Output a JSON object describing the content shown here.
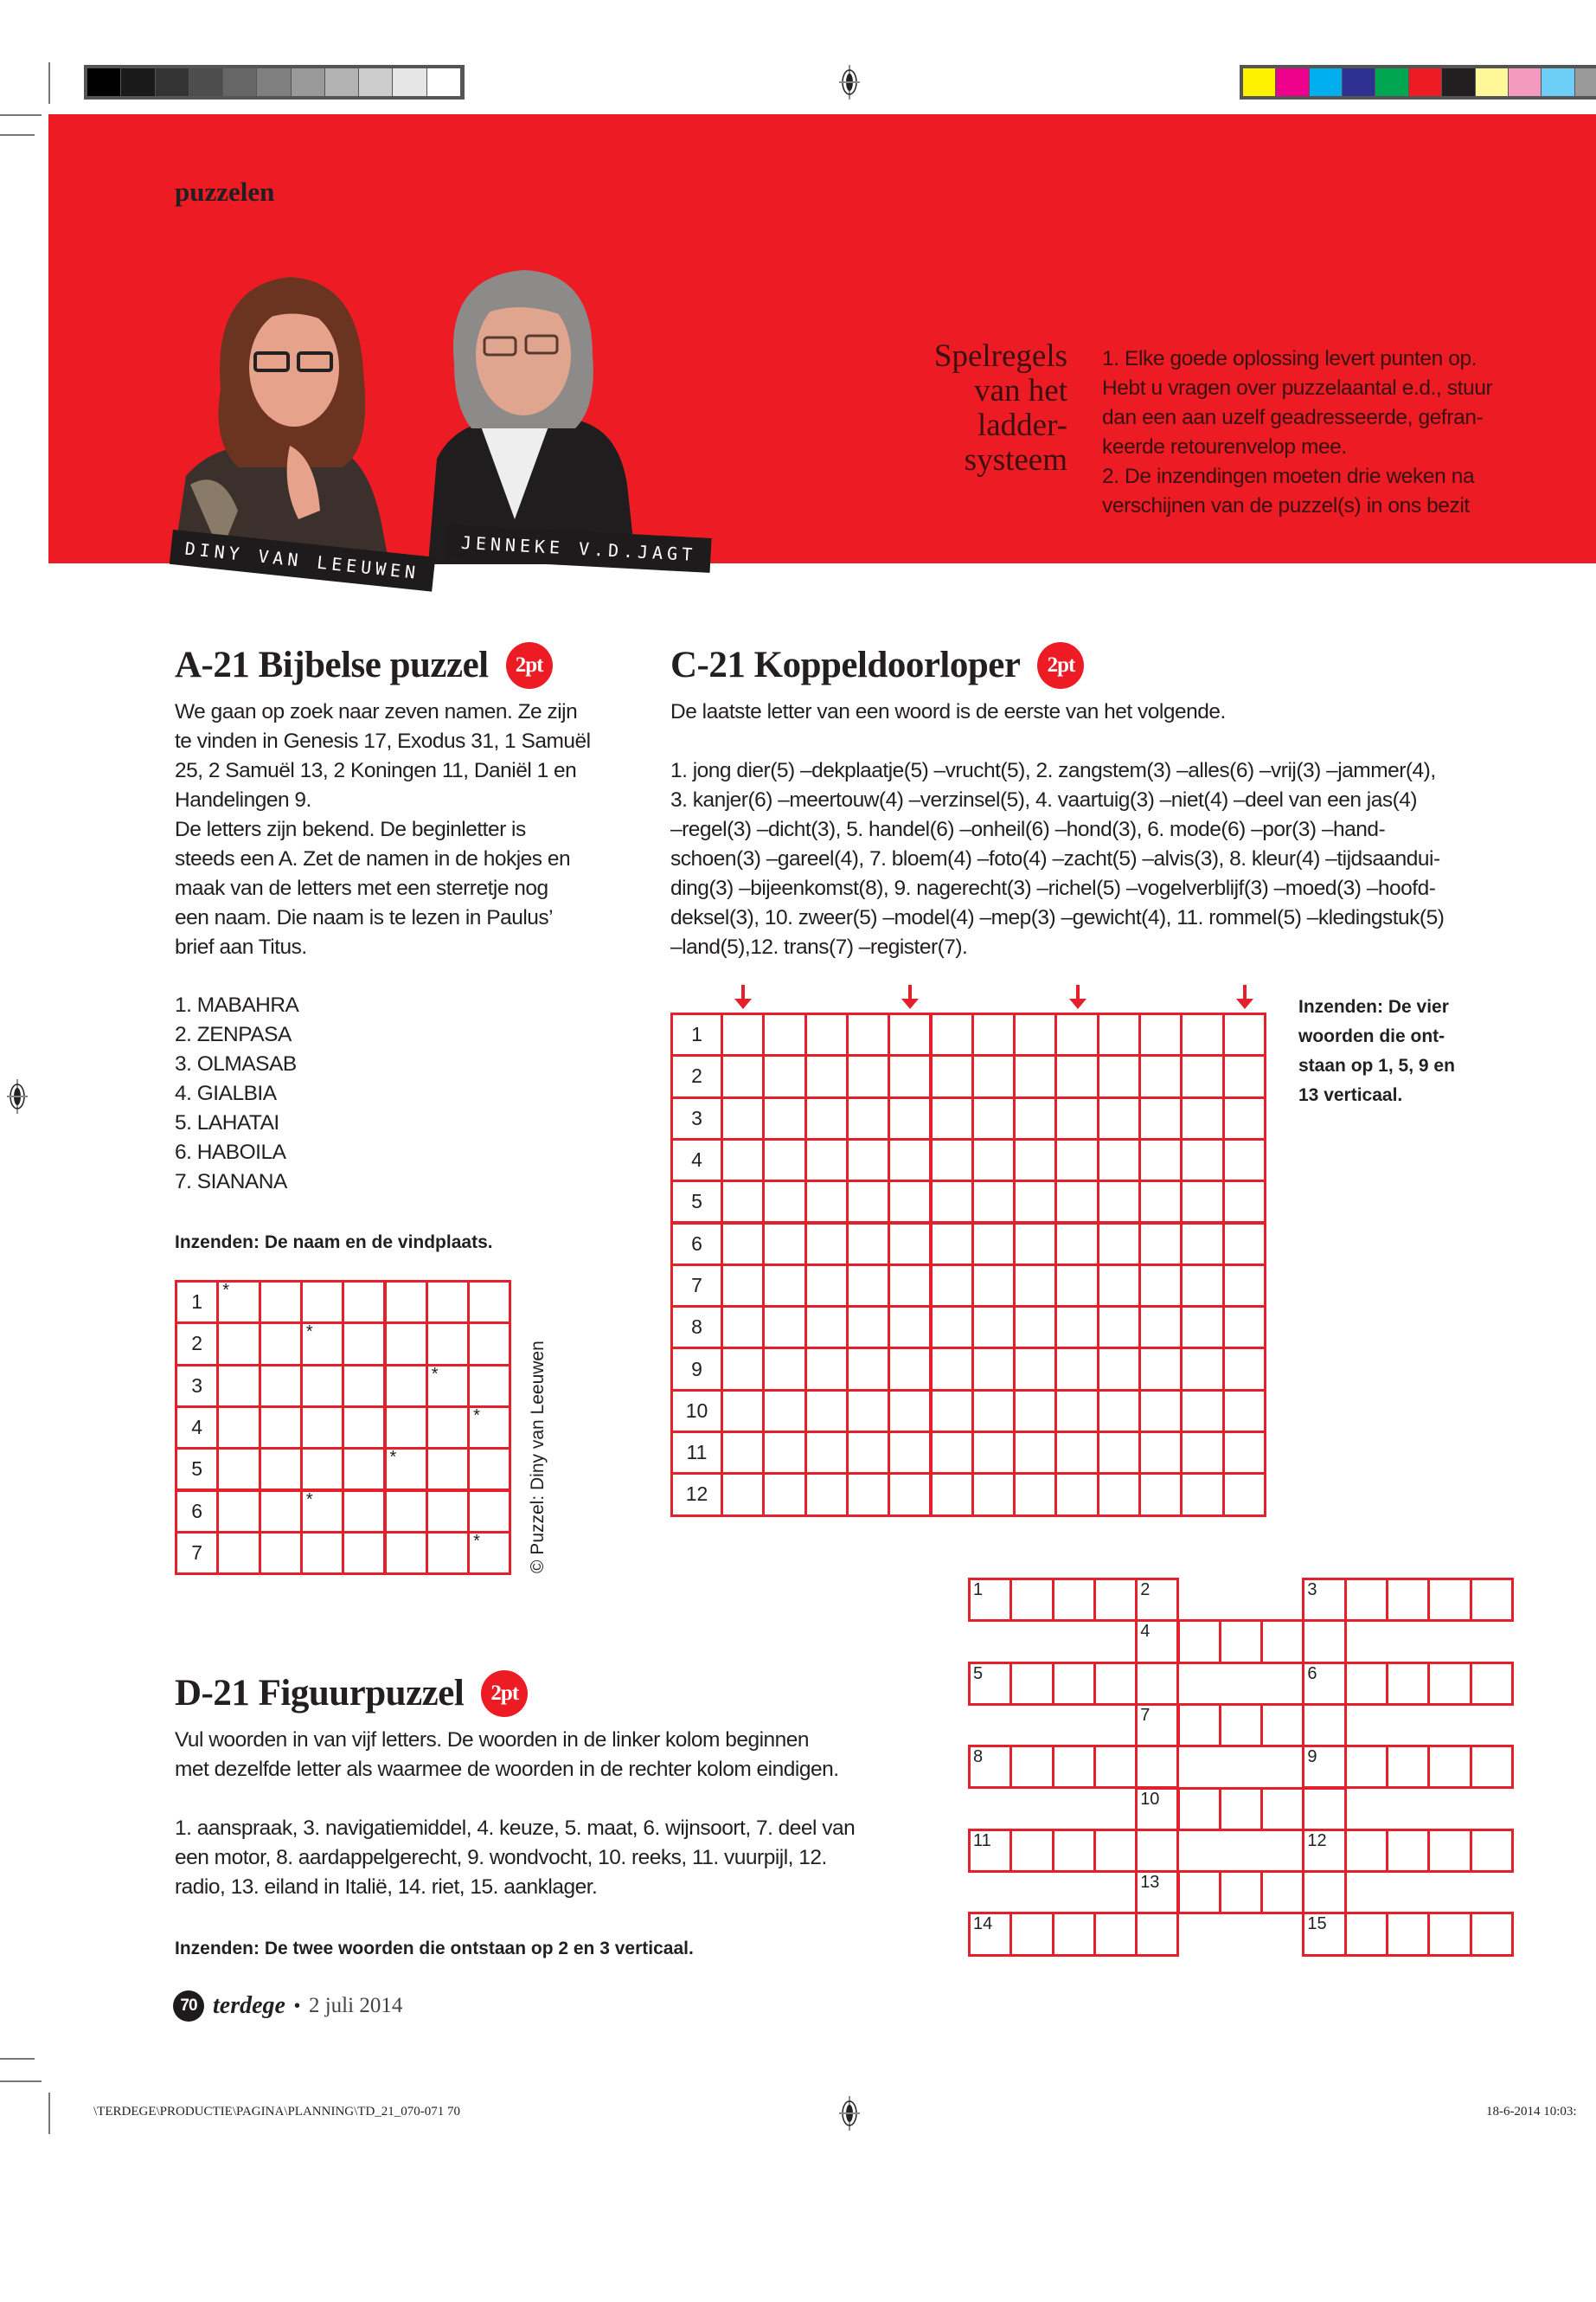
{
  "print_marks": {
    "gray_strip": [
      "#000000",
      "#1a1a1a",
      "#333333",
      "#4d4d4d",
      "#666666",
      "#808080",
      "#999999",
      "#b3b3b3",
      "#cccccc",
      "#e6e6e6",
      "#ffffff"
    ],
    "color_strip": [
      "#fff200",
      "#ec008c",
      "#00aeef",
      "#2e3192",
      "#00a651",
      "#ed1c24",
      "#231f20",
      "#fff799",
      "#f49ac1",
      "#6dcff6",
      "#999999"
    ],
    "slug_left": "\\TERDEGE\\PRODUCTIE\\PAGINA\\PLANNING\\TD_21_070-071   70",
    "slug_right": "18-6-2014   10:03:"
  },
  "colors": {
    "brand_red": "#ed1c24",
    "grid_red": "#e3202b",
    "text": "#231f20"
  },
  "header": {
    "section": "puzzelen",
    "authors": [
      "DINY VAN LEEUWEN",
      "JENNEKE V.D.JAGT"
    ],
    "rules_title": [
      "Spelregels",
      "van het",
      "ladder-",
      "systeem"
    ],
    "rules_text": [
      "1. Elke goede oplossing levert punten op.",
      "Hebt u vragen over puzzelaantal e.d., stuur",
      "dan een aan uzelf geadresseerde, gefran-",
      "keerde retourenvelop mee.",
      "2. De inzendingen moeten drie weken na",
      "verschijnen van de puzzel(s) in ons bezit"
    ]
  },
  "puzzle_a": {
    "title": "A-21 Bijbelse puzzel",
    "points": "2pt",
    "intro": [
      "We gaan op zoek naar zeven namen. Ze zijn",
      "te vinden in Genesis 17, Exodus 31, 1 Samuël",
      "25, 2 Samuël 13, 2 Koningen 11, Daniël 1 en",
      "Handelingen 9.",
      "De letters zijn bekend. De beginletter is",
      "steeds een A. Zet de namen in de hokjes en",
      "maak van de letters met een sterretje nog",
      "een naam. Die naam is te lezen in Paulus’",
      "brief aan Titus."
    ],
    "clues": [
      "1. MABAHRA",
      "2. ZENPASA",
      "3. OLMASAB",
      "4. GIALBIA",
      "5. LAHATAI",
      "6. HABOILA",
      "7. SIANANA"
    ],
    "submit": "Inzenden: De naam en de vindplaats.",
    "grid": {
      "rows": [
        "1",
        "2",
        "3",
        "4",
        "5",
        "6",
        "7"
      ],
      "letter_columns": 7,
      "star": "*",
      "star_columns": [
        1,
        3,
        6,
        7,
        5,
        3,
        7
      ]
    },
    "credit": "© Puzzel: Diny van Leeuwen"
  },
  "puzzle_c": {
    "title": "C-21 Koppeldoorloper",
    "points": "2pt",
    "intro": "De laatste letter van een woord is de eerste van het volgende.",
    "clues": [
      "1. jong dier(5) –dekplaatje(5) –vrucht(5), 2. zangstem(3) –alles(6) –vrij(3) –jammer(4),",
      "3. kanjer(6) –meertouw(4) –verzinsel(5), 4. vaartuig(3) –niet(4) –deel van een jas(4)",
      "–regel(3) –dicht(3), 5. handel(6) –onheil(6) –hond(3), 6. mode(6) –por(3) –hand-",
      "schoen(3) –gareel(4), 7. bloem(4) –foto(4) –zacht(5) –alvis(3), 8. kleur(4) –tijdsaandui-",
      "ding(3) –bijeenkomst(8), 9. nagerecht(3) –richel(5) –vogelverblijf(3) –moed(3) –hoofd-",
      "deksel(3), 10. zweer(5) –model(4) –mep(3) –gewicht(4), 11. rommel(5) –kledingstuk(5)",
      "–land(5),12. trans(7) –register(7)."
    ],
    "submit": [
      "Inzenden: De vier",
      "woorden die ont-",
      "staan op 1, 5, 9 en",
      "13 verticaal."
    ],
    "grid": {
      "rows": [
        "1",
        "2",
        "3",
        "4",
        "5",
        "6",
        "7",
        "8",
        "9",
        "10",
        "11",
        "12"
      ],
      "columns": 13,
      "arrow_columns": [
        1,
        5,
        9,
        13
      ]
    }
  },
  "puzzle_d": {
    "title": "D-21 Figuurpuzzel",
    "points": "2pt",
    "intro": [
      "Vul woorden in van vijf letters. De woorden in de linker kolom beginnen",
      "met dezelfde letter als waarmee de woorden in de rechter kolom eindigen."
    ],
    "clues": [
      "1. aanspraak, 3. navigatiemiddel, 4. keuze, 5. maat, 6. wijnsoort, 7. deel van",
      "een motor, 8. aardappelgerecht, 9. wondvocht, 10. reeks, 11. vuurpijl, 12.",
      "radio, 13. eiland in Italië, 14. riet, 15. aanklager."
    ],
    "submit": "Inzenden: De twee woorden die ontstaan op 2 en 3 verticaal.",
    "grid": {
      "numbers": [
        [
          "1",
          "2",
          "3"
        ],
        [
          "4"
        ],
        [
          "5",
          "6"
        ],
        [
          "7"
        ],
        [
          "8",
          "9"
        ],
        [
          "10"
        ],
        [
          "11",
          "12"
        ],
        [
          "13"
        ],
        [
          "14",
          "15"
        ]
      ]
    }
  },
  "footer": {
    "page": "70",
    "magazine": "terdege",
    "separator": "•",
    "date": "2 juli 2014"
  }
}
